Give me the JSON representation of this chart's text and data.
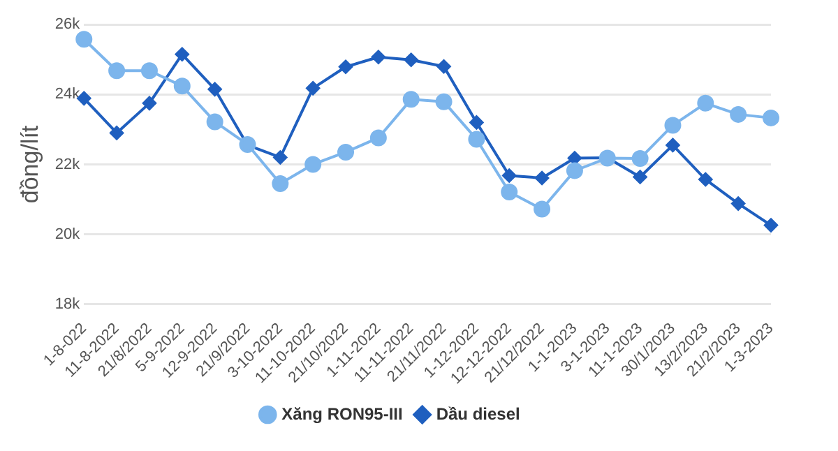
{
  "chart_data": {
    "type": "line",
    "ylabel": "đồng/lít",
    "categories": [
      "1-8-022",
      "11-8-2022",
      "21/8/2022",
      "5-9-2022",
      "12-9-2022",
      "21/9/2022",
      "3-10-2022",
      "11-10-2022",
      "21/10/2022",
      "1-11-2022",
      "11-11-2022",
      "21/11/2022",
      "1-12-2022",
      "12-12-2022",
      "21/12/2022",
      "1-1-2023",
      "3-1-2023",
      "11-1-2023",
      "30/1/2023",
      "13/2/2023",
      "21/2/2023",
      "1-3-2023"
    ],
    "series": [
      {
        "name": "Xăng RON95-III",
        "color": "#7cb5ec",
        "marker": "circle",
        "values": [
          25580,
          24680,
          24680,
          24240,
          23220,
          22570,
          21450,
          22000,
          22350,
          22760,
          23860,
          23790,
          22720,
          21210,
          20720,
          21820,
          22180,
          22170,
          23120,
          23750,
          23430,
          23330
        ]
      },
      {
        "name": "Dầu diesel",
        "color": "#1f5fbf",
        "marker": "diamond",
        "values": [
          23890,
          22900,
          23750,
          25150,
          24150,
          22550,
          22200,
          24180,
          24790,
          25070,
          24990,
          24800,
          23200,
          21680,
          21610,
          22180,
          22190,
          21640,
          22550,
          21570,
          20880,
          20260
        ]
      }
    ],
    "ylim": [
      18000,
      26000
    ],
    "yticks": [
      {
        "value": 18000,
        "label": "18k"
      },
      {
        "value": 20000,
        "label": "20k"
      },
      {
        "value": 22000,
        "label": "22k"
      },
      {
        "value": 24000,
        "label": "24k"
      },
      {
        "value": 26000,
        "label": "26k"
      }
    ],
    "grid": "y",
    "legend": "bottom",
    "line_style": "solid"
  }
}
